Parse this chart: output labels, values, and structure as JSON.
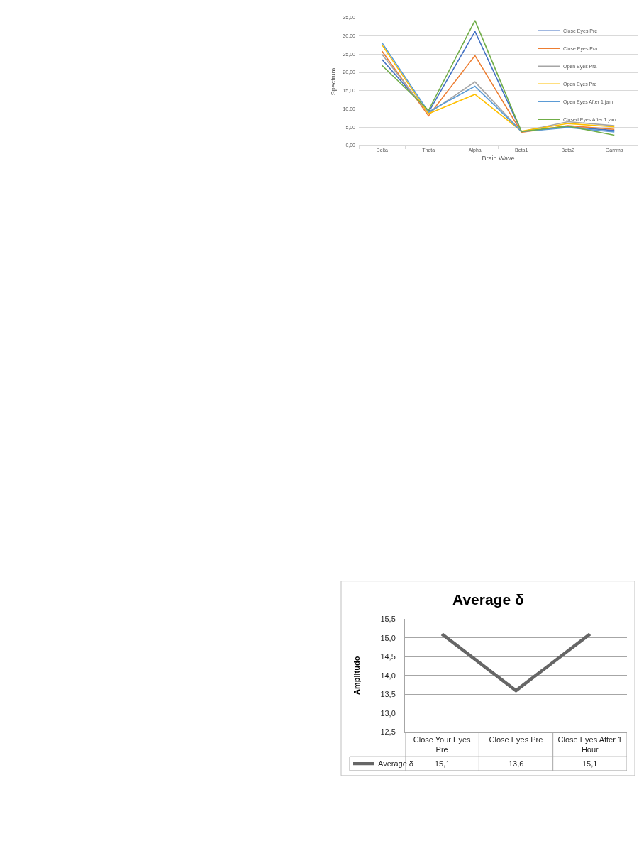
{
  "chart_data": [
    {
      "type": "line",
      "xlabel": "Brain Wave",
      "ylabel": "Spectrum",
      "categories": [
        "Delta",
        "Theta",
        "Alpha",
        "Beta1",
        "Beta2",
        "Gamma"
      ],
      "ylim": [
        0,
        35
      ],
      "yticks": [
        {
          "value": 0,
          "label": "0,00"
        },
        {
          "value": 5,
          "label": "5,00"
        },
        {
          "value": 10,
          "label": "10,00"
        },
        {
          "value": 15,
          "label": "15,00"
        },
        {
          "value": 20,
          "label": "20,00"
        },
        {
          "value": 25,
          "label": "25,00"
        },
        {
          "value": 30,
          "label": "30,00"
        },
        {
          "value": 35,
          "label": "35,00"
        }
      ],
      "grid": "y",
      "legend": "top right",
      "series": [
        {
          "name": "Close Eyes Pre",
          "color": "#4472c4",
          "values": [
            23.5,
            9.1,
            31.2,
            3.8,
            5.1,
            4.1
          ]
        },
        {
          "name": "Close Eyes Pra",
          "color": "#ed7d31",
          "values": [
            25.8,
            8.1,
            24.6,
            3.6,
            5.4,
            4.4
          ]
        },
        {
          "name": "Open Eyes Pra",
          "color": "#a5a5a5",
          "values": [
            24.9,
            8.8,
            17.4,
            3.8,
            6.5,
            5.4
          ]
        },
        {
          "name": "Open Eyes Pre",
          "color": "#ffc000",
          "values": [
            27.5,
            8.7,
            14.0,
            3.9,
            6.0,
            5.1
          ]
        },
        {
          "name": "Open Eyes After 1 jam",
          "color": "#5b9bd5",
          "values": [
            28.1,
            9.2,
            16.2,
            3.8,
            4.9,
            3.7
          ]
        },
        {
          "name": "Closed Eyes After 1 jam",
          "color": "#70ad47",
          "values": [
            21.9,
            9.6,
            34.2,
            3.8,
            5.3,
            2.8
          ]
        }
      ]
    },
    {
      "type": "line",
      "title": "Average δ",
      "ylabel": "Amplitudo",
      "categories": [
        "Close Your Eyes Pre",
        "Close Eyes Pre",
        "Close Eyes After 1 Hour"
      ],
      "ylim": [
        12.5,
        15.5
      ],
      "yticks": [
        {
          "value": 12.5,
          "label": "12,5"
        },
        {
          "value": 13,
          "label": "13,0"
        },
        {
          "value": 13.5,
          "label": "13,5"
        },
        {
          "value": 14,
          "label": "14,0"
        },
        {
          "value": 14.5,
          "label": "14,5"
        },
        {
          "value": 15,
          "label": "15,0"
        },
        {
          "value": 15.5,
          "label": "15,5"
        }
      ],
      "grid": "y",
      "legend": "bottom left",
      "series": [
        {
          "name": "Average δ",
          "color": "#666666",
          "values": [
            15.1,
            13.6,
            15.1
          ],
          "value_labels": [
            "15,1",
            "13,6",
            "15,1"
          ]
        }
      ]
    }
  ]
}
